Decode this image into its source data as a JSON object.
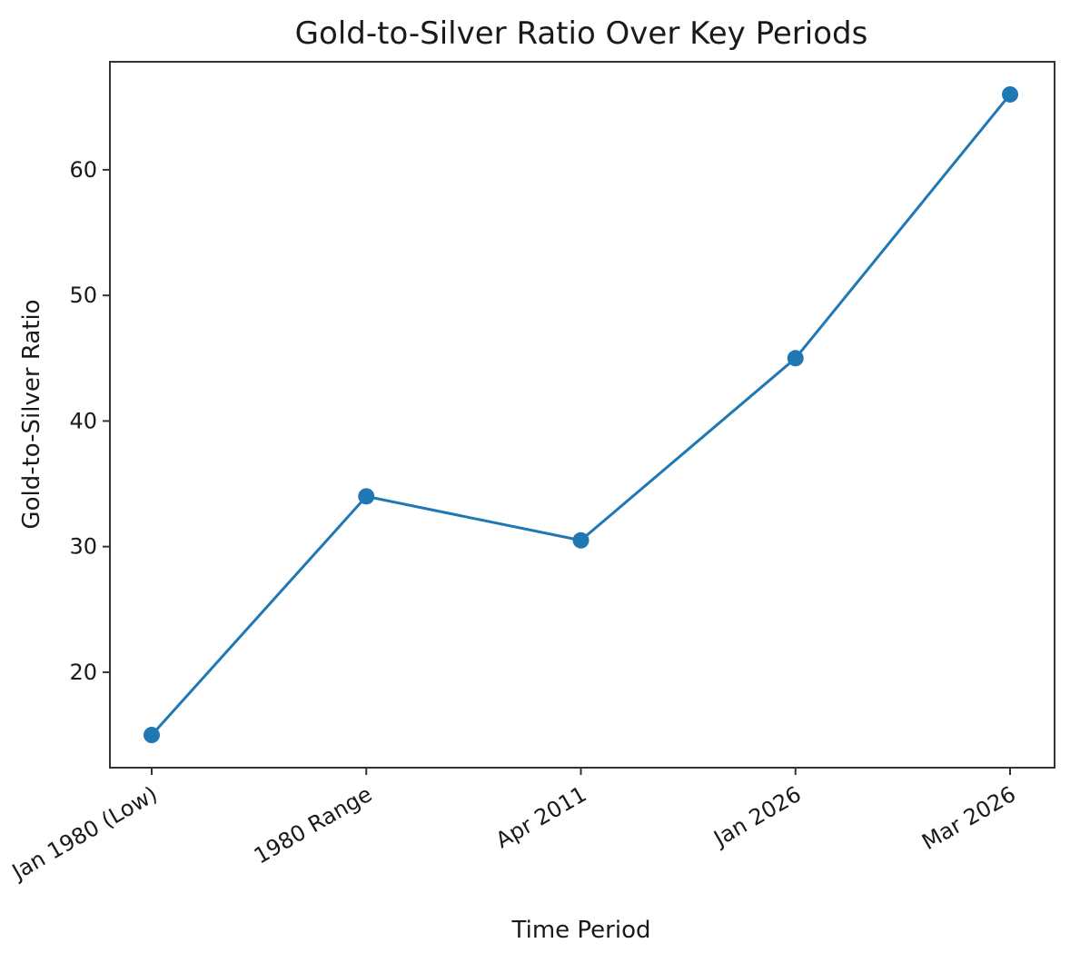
{
  "chart_data": {
    "type": "line",
    "title": "Gold-to-Silver Ratio Over Key Periods",
    "xlabel": "Time Period",
    "ylabel": "Gold-to-Silver Ratio",
    "categories": [
      "Jan 1980 (Low)",
      "1980 Range",
      "Apr 2011",
      "Jan 2026",
      "Mar 2026"
    ],
    "values": [
      15,
      34,
      30.5,
      45,
      66
    ],
    "yticks": [
      20,
      30,
      40,
      50,
      60
    ],
    "ylim": [
      12.4,
      68.6
    ],
    "grid": false,
    "line_color": "#1f77b4",
    "marker": "circle"
  }
}
